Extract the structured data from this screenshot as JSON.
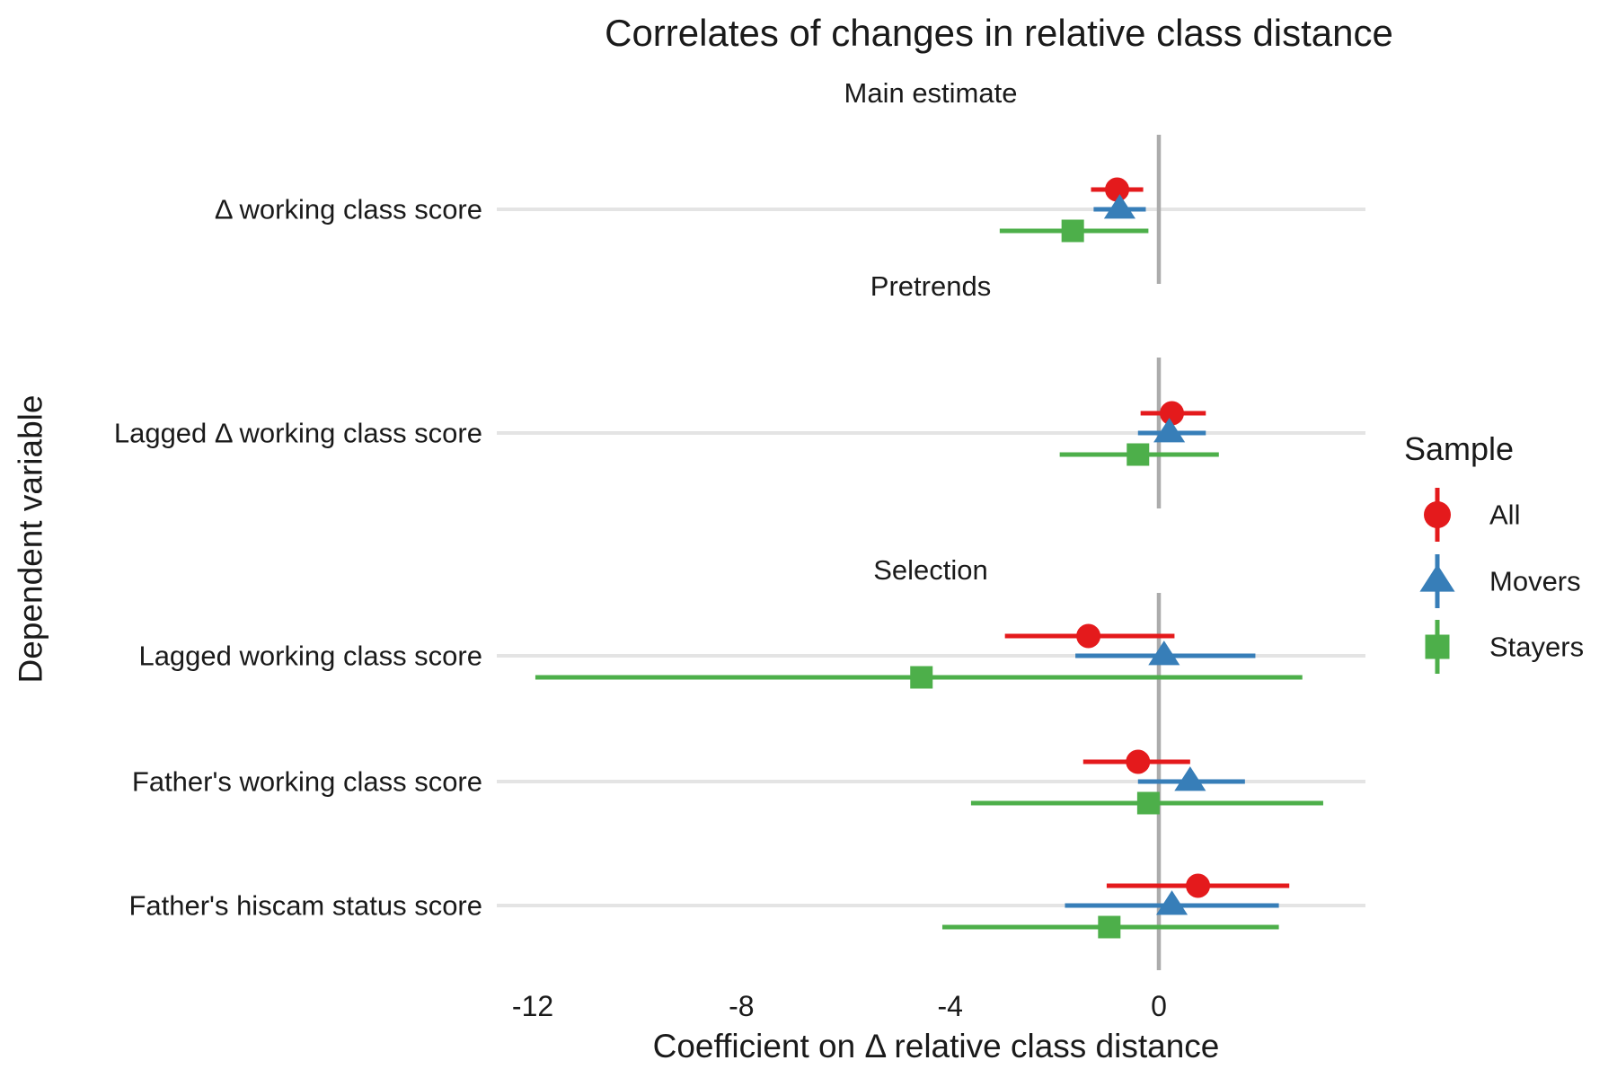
{
  "title": "Correlates of changes in relative class distance",
  "x_axis": {
    "label": "Coefficient on Δ relative class distance",
    "tick_labels": [
      "-12",
      "-8",
      "-4",
      "0"
    ],
    "tick_values": [
      -12,
      -8,
      -4,
      0
    ]
  },
  "y_axis": {
    "label": "Dependent variable"
  },
  "legend": {
    "title": "Sample",
    "items": [
      {
        "label": "All",
        "marker": "circle",
        "color": "#E41A1C"
      },
      {
        "label": "Movers",
        "marker": "triangle",
        "color": "#377EB8"
      },
      {
        "label": "Stayers",
        "marker": "square",
        "color": "#4DAF4A"
      }
    ]
  },
  "colors": {
    "all": "#E41A1C",
    "movers": "#377EB8",
    "stayers": "#4DAF4A",
    "gridline": "#E4E4E4",
    "zero_line": "#ACACAC",
    "text": "#1a1a1a"
  },
  "chart_data": {
    "type": "scatter",
    "subtype": "coefficient pointrange plot with horizontal error bars",
    "xlabel": "Coefficient on Δ relative class distance",
    "ylabel": "Dependent variable",
    "xlim": [
      -12.7,
      4.0
    ],
    "grid": "one light horizontal gridline per category row; gray vertical reference line at x=0; no panel border",
    "legend_position": "right",
    "series": [
      "All",
      "Movers",
      "Stayers"
    ],
    "panels": [
      {
        "label": "Main estimate",
        "rows": [
          {
            "label": "Δ working class score",
            "estimates": {
              "All": {
                "est": -0.8,
                "lo": -1.3,
                "hi": -0.3
              },
              "Movers": {
                "est": -0.75,
                "lo": -1.25,
                "hi": -0.25
              },
              "Stayers": {
                "est": -1.65,
                "lo": -3.05,
                "hi": -0.2
              }
            }
          }
        ]
      },
      {
        "label": "Pretrends",
        "rows": [
          {
            "label": "Lagged Δ working class score",
            "estimates": {
              "All": {
                "est": 0.25,
                "lo": -0.35,
                "hi": 0.9
              },
              "Movers": {
                "est": 0.2,
                "lo": -0.4,
                "hi": 0.9
              },
              "Stayers": {
                "est": -0.4,
                "lo": -1.9,
                "hi": 1.15
              }
            }
          }
        ]
      },
      {
        "label": "Selection",
        "rows": [
          {
            "label": "Lagged working class score",
            "estimates": {
              "All": {
                "est": -1.35,
                "lo": -2.95,
                "hi": 0.3
              },
              "Movers": {
                "est": 0.1,
                "lo": -1.6,
                "hi": 1.85
              },
              "Stayers": {
                "est": -4.55,
                "lo": -11.95,
                "hi": 2.75
              }
            }
          },
          {
            "label": "Father's working class score",
            "estimates": {
              "All": {
                "est": -0.4,
                "lo": -1.45,
                "hi": 0.6
              },
              "Movers": {
                "est": 0.6,
                "lo": -0.4,
                "hi": 1.65
              },
              "Stayers": {
                "est": -0.2,
                "lo": -3.6,
                "hi": 3.15
              }
            }
          },
          {
            "label": "Father's hiscam status score",
            "estimates": {
              "All": {
                "est": 0.75,
                "lo": -1.0,
                "hi": 2.5
              },
              "Movers": {
                "est": 0.25,
                "lo": -1.8,
                "hi": 2.3
              },
              "Stayers": {
                "est": -0.95,
                "lo": -4.15,
                "hi": 2.3
              }
            }
          }
        ]
      }
    ]
  }
}
